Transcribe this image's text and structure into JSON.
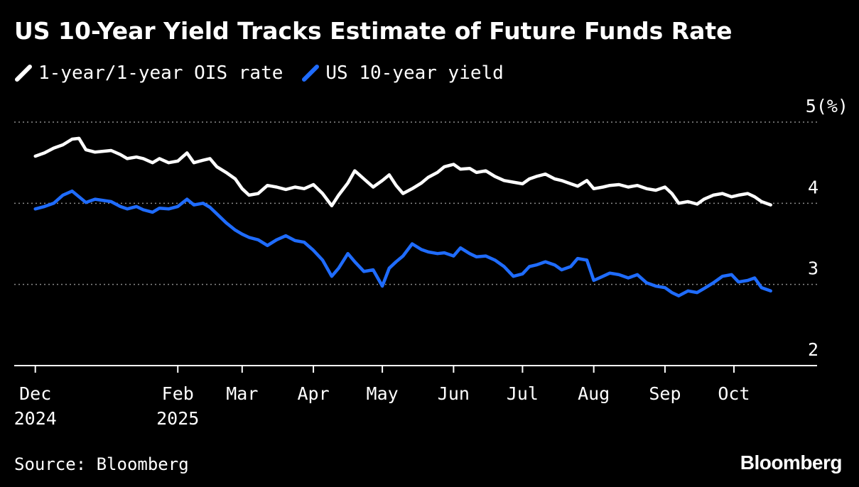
{
  "title": "US 10-Year Yield Tracks Estimate of Future Funds Rate",
  "source": "Source: Bloomberg",
  "brand": "Bloomberg",
  "chart_data": {
    "type": "line",
    "title": "US 10-Year Yield Tracks Estimate of Future Funds Rate",
    "unit_label": "(%)",
    "ylim": [
      2,
      5
    ],
    "y_ticks": [
      {
        "value": 5,
        "label": "5(%)"
      },
      {
        "value": 4,
        "label": "4"
      },
      {
        "value": 3,
        "label": "3"
      },
      {
        "value": 2,
        "label": "2"
      }
    ],
    "y_gridlines": [
      3,
      4,
      5
    ],
    "xlim": [
      "2024-11-28",
      "2025-10-31"
    ],
    "x_ticks": [
      {
        "date": "2024-12-01",
        "label": "Dec",
        "label2": "2024"
      },
      {
        "date": "2025-02-01",
        "label": "Feb",
        "label2": "2025"
      },
      {
        "date": "2025-03-01",
        "label": "Mar",
        "label2": ""
      },
      {
        "date": "2025-04-01",
        "label": "Apr",
        "label2": ""
      },
      {
        "date": "2025-05-01",
        "label": "May",
        "label2": ""
      },
      {
        "date": "2025-06-01",
        "label": "Jun",
        "label2": ""
      },
      {
        "date": "2025-07-01",
        "label": "Jul",
        "label2": ""
      },
      {
        "date": "2025-08-01",
        "label": "Aug",
        "label2": ""
      },
      {
        "date": "2025-09-01",
        "label": "Sep",
        "label2": ""
      },
      {
        "date": "2025-10-01",
        "label": "Oct",
        "label2": ""
      }
    ],
    "grid": "horizontal dotted",
    "legend_position": "top-left",
    "series": [
      {
        "name": "1-year/1-year OIS rate",
        "color": "#ffffff",
        "points": [
          [
            "2024-12-01",
            4.58
          ],
          [
            "2024-12-05",
            4.62
          ],
          [
            "2024-12-09",
            4.68
          ],
          [
            "2024-12-13",
            4.72
          ],
          [
            "2024-12-17",
            4.79
          ],
          [
            "2024-12-20",
            4.8
          ],
          [
            "2024-12-23",
            4.66
          ],
          [
            "2024-12-27",
            4.63
          ],
          [
            "2025-01-03",
            4.65
          ],
          [
            "2025-01-07",
            4.6
          ],
          [
            "2025-01-10",
            4.55
          ],
          [
            "2025-01-14",
            4.57
          ],
          [
            "2025-01-17",
            4.55
          ],
          [
            "2025-01-21",
            4.5
          ],
          [
            "2025-01-24",
            4.55
          ],
          [
            "2025-01-28",
            4.5
          ],
          [
            "2025-02-01",
            4.52
          ],
          [
            "2025-02-05",
            4.62
          ],
          [
            "2025-02-08",
            4.5
          ],
          [
            "2025-02-12",
            4.53
          ],
          [
            "2025-02-15",
            4.55
          ],
          [
            "2025-02-18",
            4.45
          ],
          [
            "2025-02-22",
            4.38
          ],
          [
            "2025-02-26",
            4.3
          ],
          [
            "2025-03-01",
            4.18
          ],
          [
            "2025-03-04",
            4.1
          ],
          [
            "2025-03-08",
            4.12
          ],
          [
            "2025-03-12",
            4.22
          ],
          [
            "2025-03-16",
            4.2
          ],
          [
            "2025-03-20",
            4.17
          ],
          [
            "2025-03-24",
            4.2
          ],
          [
            "2025-03-28",
            4.18
          ],
          [
            "2025-04-01",
            4.23
          ],
          [
            "2025-04-05",
            4.12
          ],
          [
            "2025-04-09",
            3.97
          ],
          [
            "2025-04-12",
            4.1
          ],
          [
            "2025-04-16",
            4.25
          ],
          [
            "2025-04-19",
            4.4
          ],
          [
            "2025-04-23",
            4.3
          ],
          [
            "2025-04-27",
            4.2
          ],
          [
            "2025-05-01",
            4.28
          ],
          [
            "2025-05-04",
            4.35
          ],
          [
            "2025-05-07",
            4.22
          ],
          [
            "2025-05-10",
            4.12
          ],
          [
            "2025-05-14",
            4.18
          ],
          [
            "2025-05-18",
            4.25
          ],
          [
            "2025-05-21",
            4.32
          ],
          [
            "2025-05-25",
            4.38
          ],
          [
            "2025-05-28",
            4.45
          ],
          [
            "2025-06-01",
            4.48
          ],
          [
            "2025-06-04",
            4.42
          ],
          [
            "2025-06-08",
            4.43
          ],
          [
            "2025-06-11",
            4.38
          ],
          [
            "2025-06-15",
            4.4
          ],
          [
            "2025-06-19",
            4.33
          ],
          [
            "2025-06-23",
            4.28
          ],
          [
            "2025-06-27",
            4.26
          ],
          [
            "2025-07-01",
            4.24
          ],
          [
            "2025-07-04",
            4.3
          ],
          [
            "2025-07-07",
            4.33
          ],
          [
            "2025-07-11",
            4.36
          ],
          [
            "2025-07-15",
            4.3
          ],
          [
            "2025-07-18",
            4.28
          ],
          [
            "2025-07-22",
            4.24
          ],
          [
            "2025-07-25",
            4.21
          ],
          [
            "2025-07-29",
            4.28
          ],
          [
            "2025-08-01",
            4.18
          ],
          [
            "2025-08-05",
            4.2
          ],
          [
            "2025-08-08",
            4.22
          ],
          [
            "2025-08-12",
            4.23
          ],
          [
            "2025-08-16",
            4.2
          ],
          [
            "2025-08-20",
            4.22
          ],
          [
            "2025-08-24",
            4.18
          ],
          [
            "2025-08-28",
            4.16
          ],
          [
            "2025-09-01",
            4.2
          ],
          [
            "2025-09-04",
            4.12
          ],
          [
            "2025-09-07",
            4.0
          ],
          [
            "2025-09-11",
            4.02
          ],
          [
            "2025-09-15",
            3.99
          ],
          [
            "2025-09-18",
            4.05
          ],
          [
            "2025-09-22",
            4.1
          ],
          [
            "2025-09-26",
            4.12
          ],
          [
            "2025-09-30",
            4.08
          ],
          [
            "2025-10-03",
            4.1
          ],
          [
            "2025-10-07",
            4.12
          ],
          [
            "2025-10-10",
            4.08
          ],
          [
            "2025-10-13",
            4.02
          ],
          [
            "2025-10-17",
            3.98
          ]
        ]
      },
      {
        "name": "US 10-year yield",
        "color": "#1f6cff",
        "points": [
          [
            "2024-12-01",
            3.93
          ],
          [
            "2024-12-05",
            3.96
          ],
          [
            "2024-12-09",
            4.0
          ],
          [
            "2024-12-13",
            4.1
          ],
          [
            "2024-12-17",
            4.15
          ],
          [
            "2024-12-20",
            4.08
          ],
          [
            "2024-12-23",
            4.01
          ],
          [
            "2024-12-27",
            4.05
          ],
          [
            "2025-01-03",
            4.02
          ],
          [
            "2025-01-07",
            3.96
          ],
          [
            "2025-01-10",
            3.93
          ],
          [
            "2025-01-14",
            3.96
          ],
          [
            "2025-01-17",
            3.92
          ],
          [
            "2025-01-21",
            3.89
          ],
          [
            "2025-01-24",
            3.94
          ],
          [
            "2025-01-28",
            3.93
          ],
          [
            "2025-02-01",
            3.96
          ],
          [
            "2025-02-05",
            4.05
          ],
          [
            "2025-02-08",
            3.98
          ],
          [
            "2025-02-12",
            4.0
          ],
          [
            "2025-02-15",
            3.95
          ],
          [
            "2025-02-18",
            3.87
          ],
          [
            "2025-02-22",
            3.76
          ],
          [
            "2025-02-26",
            3.67
          ],
          [
            "2025-03-01",
            3.62
          ],
          [
            "2025-03-04",
            3.58
          ],
          [
            "2025-03-08",
            3.55
          ],
          [
            "2025-03-12",
            3.48
          ],
          [
            "2025-03-16",
            3.55
          ],
          [
            "2025-03-20",
            3.6
          ],
          [
            "2025-03-24",
            3.54
          ],
          [
            "2025-03-28",
            3.52
          ],
          [
            "2025-04-01",
            3.42
          ],
          [
            "2025-04-05",
            3.3
          ],
          [
            "2025-04-09",
            3.1
          ],
          [
            "2025-04-12",
            3.2
          ],
          [
            "2025-04-16",
            3.38
          ],
          [
            "2025-04-19",
            3.28
          ],
          [
            "2025-04-23",
            3.16
          ],
          [
            "2025-04-27",
            3.18
          ],
          [
            "2025-05-01",
            2.98
          ],
          [
            "2025-05-04",
            3.2
          ],
          [
            "2025-05-07",
            3.28
          ],
          [
            "2025-05-10",
            3.35
          ],
          [
            "2025-05-14",
            3.5
          ],
          [
            "2025-05-18",
            3.43
          ],
          [
            "2025-05-21",
            3.4
          ],
          [
            "2025-05-25",
            3.38
          ],
          [
            "2025-05-28",
            3.39
          ],
          [
            "2025-06-01",
            3.35
          ],
          [
            "2025-06-04",
            3.45
          ],
          [
            "2025-06-08",
            3.38
          ],
          [
            "2025-06-11",
            3.34
          ],
          [
            "2025-06-15",
            3.35
          ],
          [
            "2025-06-19",
            3.3
          ],
          [
            "2025-06-23",
            3.22
          ],
          [
            "2025-06-27",
            3.1
          ],
          [
            "2025-07-01",
            3.13
          ],
          [
            "2025-07-04",
            3.22
          ],
          [
            "2025-07-07",
            3.24
          ],
          [
            "2025-07-11",
            3.28
          ],
          [
            "2025-07-15",
            3.24
          ],
          [
            "2025-07-18",
            3.18
          ],
          [
            "2025-07-22",
            3.22
          ],
          [
            "2025-07-25",
            3.32
          ],
          [
            "2025-07-29",
            3.3
          ],
          [
            "2025-08-01",
            3.05
          ],
          [
            "2025-08-05",
            3.1
          ],
          [
            "2025-08-08",
            3.14
          ],
          [
            "2025-08-12",
            3.12
          ],
          [
            "2025-08-16",
            3.08
          ],
          [
            "2025-08-20",
            3.12
          ],
          [
            "2025-08-24",
            3.02
          ],
          [
            "2025-08-28",
            2.98
          ],
          [
            "2025-09-01",
            2.96
          ],
          [
            "2025-09-04",
            2.9
          ],
          [
            "2025-09-07",
            2.86
          ],
          [
            "2025-09-11",
            2.92
          ],
          [
            "2025-09-15",
            2.9
          ],
          [
            "2025-09-18",
            2.95
          ],
          [
            "2025-09-22",
            3.02
          ],
          [
            "2025-09-26",
            3.1
          ],
          [
            "2025-09-30",
            3.12
          ],
          [
            "2025-10-03",
            3.03
          ],
          [
            "2025-10-07",
            3.05
          ],
          [
            "2025-10-10",
            3.08
          ],
          [
            "2025-10-13",
            2.96
          ],
          [
            "2025-10-17",
            2.92
          ]
        ]
      }
    ]
  }
}
